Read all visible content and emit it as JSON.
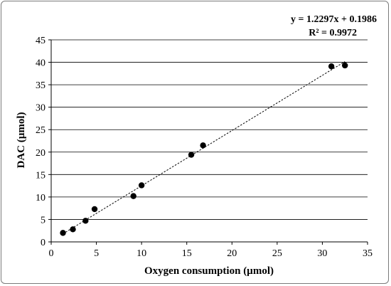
{
  "chart_data": {
    "type": "scatter",
    "xlabel": "Oxygen consumption (µmol)",
    "ylabel": "DAC (µmol)",
    "xlim": [
      0,
      35
    ],
    "ylim": [
      0,
      45
    ],
    "xticks": [
      0,
      5,
      10,
      15,
      20,
      25,
      30,
      35
    ],
    "yticks": [
      0,
      5,
      10,
      15,
      20,
      25,
      30,
      35,
      40,
      45
    ],
    "grid": "horizontal",
    "points": [
      {
        "x": 1.3,
        "y": 2.0
      },
      {
        "x": 2.4,
        "y": 2.8
      },
      {
        "x": 3.8,
        "y": 4.7
      },
      {
        "x": 4.8,
        "y": 7.3
      },
      {
        "x": 9.1,
        "y": 10.2
      },
      {
        "x": 10.0,
        "y": 12.6
      },
      {
        "x": 15.5,
        "y": 19.4
      },
      {
        "x": 16.8,
        "y": 21.5
      },
      {
        "x": 31.0,
        "y": 39.1
      },
      {
        "x": 32.5,
        "y": 39.3
      }
    ],
    "trendline": {
      "slope": 1.2297,
      "intercept": 0.1986,
      "x_range": [
        1.3,
        32.5
      ],
      "style": "dotted"
    },
    "equation": "y = 1.2297x + 0.1986",
    "r_squared": "R² = 0.9972",
    "colors": {
      "points": "#000000",
      "grid": "#000000",
      "trend": "#000000"
    }
  }
}
